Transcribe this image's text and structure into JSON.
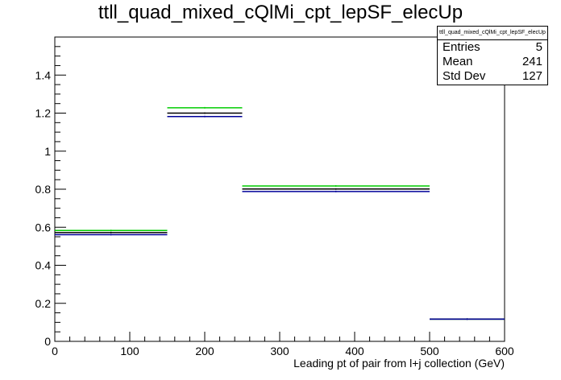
{
  "chart_data": {
    "type": "histogram",
    "title": "ttll_quad_mixed_cQlMi_cpt_lepSF_elecUp",
    "xlabel": "Leading pt of pair from l+j collection (GeV)",
    "ylabel": "",
    "xlim": [
      0,
      600
    ],
    "ylim": [
      0,
      1.6
    ],
    "x_ticks": [
      0,
      100,
      200,
      300,
      400,
      500,
      600
    ],
    "y_ticks": [
      0,
      0.2,
      0.4,
      0.6,
      0.8,
      1,
      1.2,
      1.4
    ],
    "grid": false,
    "bins": [
      [
        0,
        150
      ],
      [
        150,
        250
      ],
      [
        250,
        500
      ],
      [
        500,
        600
      ]
    ],
    "series": [
      {
        "color": "#00cc00",
        "values": [
          0.583,
          1.228,
          0.817,
          0.117
        ]
      },
      {
        "color": "#000000",
        "values": [
          0.572,
          1.2,
          0.801,
          0.117
        ]
      },
      {
        "color": "#000099",
        "values": [
          0.561,
          1.182,
          0.788,
          0.117
        ]
      }
    ],
    "stats": {
      "name": "ttll_quad_mixed_cQlMi_cpt_lepSF_elecUp",
      "rows": [
        {
          "label": "Entries",
          "value": "5"
        },
        {
          "label": "Mean",
          "value": "241"
        },
        {
          "label": "Std Dev",
          "value": "127"
        }
      ]
    }
  }
}
